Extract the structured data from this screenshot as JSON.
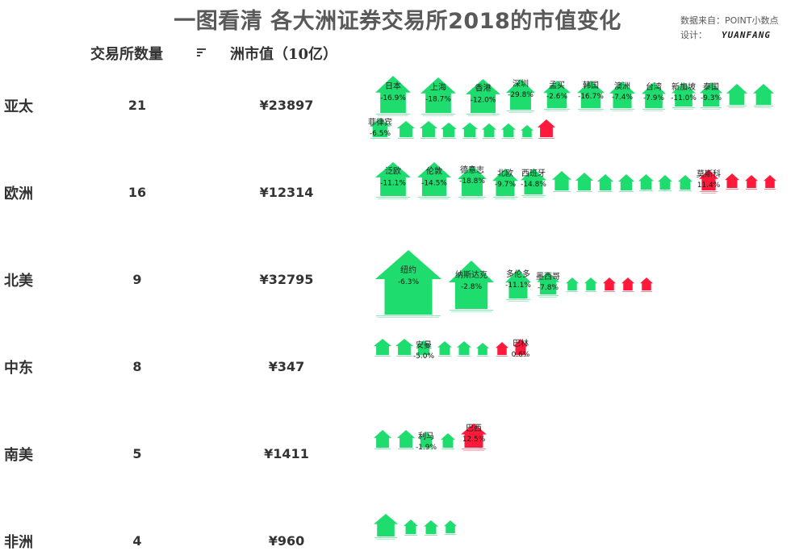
{
  "title": "一图看清 各大洲证券交易所2018的市值变化",
  "credit": {
    "source": "数据来自：POINT小数点",
    "design_label": "设计：",
    "designer": "YUANFANG"
  },
  "headers": {
    "exchanges_count": "交易所数量",
    "market_cap": "洲市值（10亿）"
  },
  "colors": {
    "up": "#ff1a3c",
    "down": "#1edc6e"
  },
  "chart_data": {
    "type": "pictogram",
    "rows": [
      {
        "region": "亚太",
        "count": "21",
        "market_cap": "¥23897",
        "exchanges": [
          {
            "name": "日本",
            "change": "-16.9%",
            "dir": "down"
          },
          {
            "name": "上海",
            "change": "-18.7%",
            "dir": "down"
          },
          {
            "name": "香港",
            "change": "-12.0%",
            "dir": "down"
          },
          {
            "name": "深圳",
            "change": "-29.8%",
            "dir": "down"
          },
          {
            "name": "孟买",
            "change": "-2.6%",
            "dir": "down"
          },
          {
            "name": "韩国",
            "change": "-16.7%",
            "dir": "down"
          },
          {
            "name": "澳洲",
            "change": "-7.4%",
            "dir": "down"
          },
          {
            "name": "台湾",
            "change": "-7.9%",
            "dir": "down"
          },
          {
            "name": "新加坡",
            "change": "-11.0%",
            "dir": "down"
          },
          {
            "name": "泰国",
            "change": "-9.3%",
            "dir": "down"
          },
          {
            "name": "",
            "change": "",
            "dir": "down"
          },
          {
            "name": "",
            "change": "",
            "dir": "down"
          },
          {
            "name": "菲律宾",
            "change": "-6.5%",
            "dir": "down"
          },
          {
            "name": "",
            "change": "",
            "dir": "down"
          },
          {
            "name": "",
            "change": "",
            "dir": "down"
          },
          {
            "name": "",
            "change": "",
            "dir": "down"
          },
          {
            "name": "",
            "change": "",
            "dir": "down"
          },
          {
            "name": "",
            "change": "",
            "dir": "down"
          },
          {
            "name": "",
            "change": "",
            "dir": "down"
          },
          {
            "name": "",
            "change": "",
            "dir": "down"
          },
          {
            "name": "",
            "change": "",
            "dir": "up"
          }
        ]
      },
      {
        "region": "欧洲",
        "count": "16",
        "market_cap": "¥12314",
        "exchanges": [
          {
            "name": "泛欧",
            "change": "-11.1%",
            "dir": "down"
          },
          {
            "name": "伦敦",
            "change": "-14.5%",
            "dir": "down"
          },
          {
            "name": "德意志",
            "change": "-18.8%",
            "dir": "down"
          },
          {
            "name": "北欧",
            "change": "-9.7%",
            "dir": "down"
          },
          {
            "name": "西班牙",
            "change": "-14.8%",
            "dir": "down"
          },
          {
            "name": "",
            "change": "",
            "dir": "down"
          },
          {
            "name": "",
            "change": "",
            "dir": "down"
          },
          {
            "name": "",
            "change": "",
            "dir": "down"
          },
          {
            "name": "",
            "change": "",
            "dir": "down"
          },
          {
            "name": "",
            "change": "",
            "dir": "down"
          },
          {
            "name": "",
            "change": "",
            "dir": "down"
          },
          {
            "name": "",
            "change": "",
            "dir": "down"
          },
          {
            "name": "莫斯科",
            "change": "11.4%",
            "dir": "up"
          },
          {
            "name": "",
            "change": "",
            "dir": "up"
          },
          {
            "name": "",
            "change": "",
            "dir": "up"
          },
          {
            "name": "",
            "change": "",
            "dir": "up"
          }
        ]
      },
      {
        "region": "北美",
        "count": "9",
        "market_cap": "¥32795",
        "exchanges": [
          {
            "name": "纽约",
            "change": "-6.3%",
            "dir": "down"
          },
          {
            "name": "纳斯达克",
            "change": "-2.8%",
            "dir": "down"
          },
          {
            "name": "多伦多",
            "change": "-11.1%",
            "dir": "down"
          },
          {
            "name": "墨西哥",
            "change": "-7.8%",
            "dir": "down"
          },
          {
            "name": "",
            "change": "",
            "dir": "down"
          },
          {
            "name": "",
            "change": "",
            "dir": "down"
          },
          {
            "name": "",
            "change": "",
            "dir": "up"
          },
          {
            "name": "",
            "change": "",
            "dir": "up"
          },
          {
            "name": "",
            "change": "",
            "dir": "up"
          }
        ]
      },
      {
        "region": "中东",
        "count": "8",
        "market_cap": "¥347",
        "exchanges": [
          {
            "name": "",
            "change": "",
            "dir": "down"
          },
          {
            "name": "",
            "change": "",
            "dir": "down"
          },
          {
            "name": "安曼",
            "change": "-5.0%",
            "dir": "down"
          },
          {
            "name": "",
            "change": "",
            "dir": "down"
          },
          {
            "name": "",
            "change": "",
            "dir": "down"
          },
          {
            "name": "",
            "change": "",
            "dir": "down"
          },
          {
            "name": "",
            "change": "",
            "dir": "up"
          },
          {
            "name": "巴林",
            "change": "0.6%",
            "dir": "up"
          }
        ]
      },
      {
        "region": "南美",
        "count": "5",
        "market_cap": "¥1411",
        "exchanges": [
          {
            "name": "",
            "change": "",
            "dir": "down"
          },
          {
            "name": "",
            "change": "",
            "dir": "down"
          },
          {
            "name": "利马",
            "change": "-1.9%",
            "dir": "down"
          },
          {
            "name": "",
            "change": "",
            "dir": "down"
          },
          {
            "name": "巴西",
            "change": "12.5%",
            "dir": "up"
          }
        ]
      },
      {
        "region": "非洲",
        "count": "4",
        "market_cap": "¥960",
        "exchanges": [
          {
            "name": "",
            "change": "",
            "dir": "down"
          },
          {
            "name": "",
            "change": "",
            "dir": "down"
          },
          {
            "name": "",
            "change": "",
            "dir": "down"
          },
          {
            "name": "",
            "change": "",
            "dir": "down"
          }
        ]
      }
    ]
  }
}
